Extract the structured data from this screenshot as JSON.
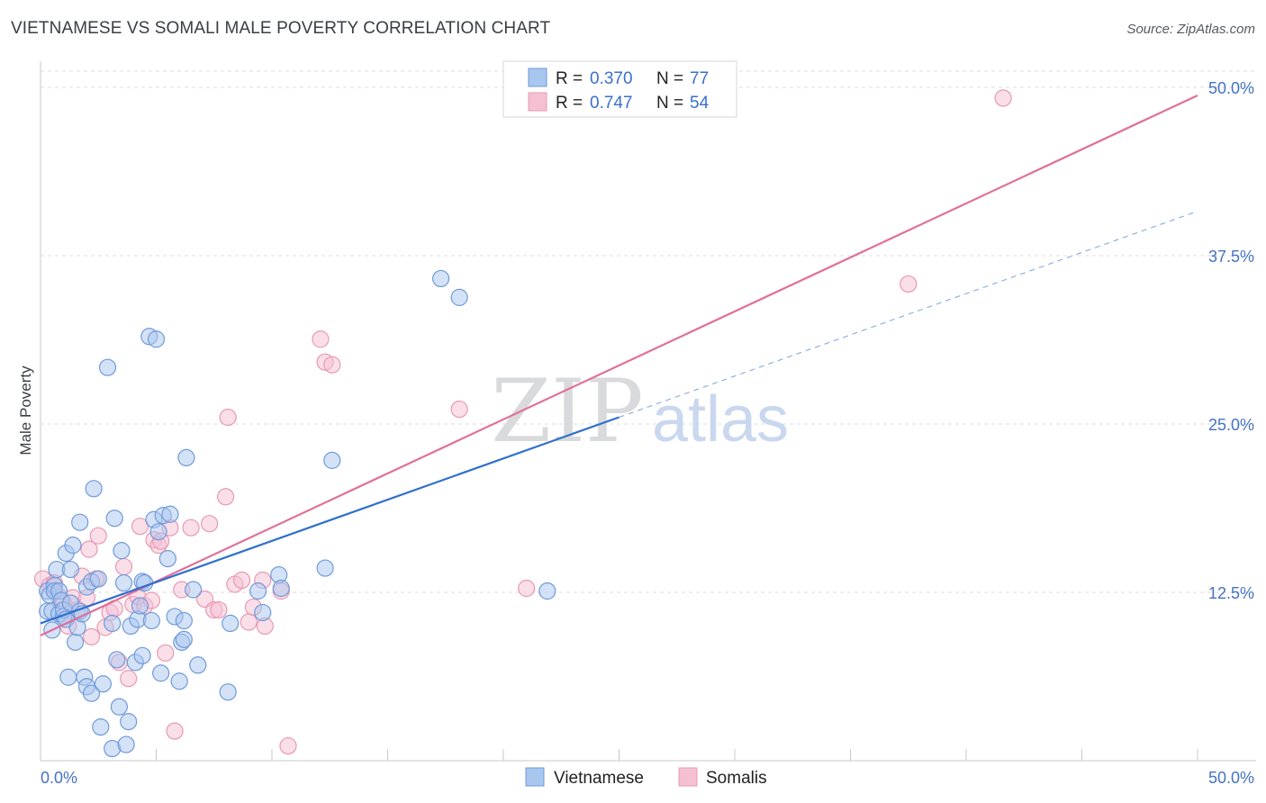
{
  "title": "VIETNAMESE VS SOMALI MALE POVERTY CORRELATION CHART",
  "source": "Source: ZipAtlas.com",
  "watermark": {
    "zip": "ZIP",
    "atlas": "atlas"
  },
  "colors": {
    "vietnamese_fill": "#a9c6ef",
    "vietnamese_stroke": "#6f9ad9",
    "vietnamese_line": "#2f6fce",
    "somali_fill": "#f6c0d3",
    "somali_stroke": "#e898b3",
    "somali_line": "#e0709a",
    "grid": "#dcdcdc",
    "axis_text": "#4472c4"
  },
  "legend": {
    "rows": [
      {
        "r_label": "R = ",
        "r_value": "0.370",
        "n_label": "N = ",
        "n_value": "77"
      },
      {
        "r_label": "R = ",
        "r_value": "0.747",
        "n_label": "N = ",
        "n_value": "54"
      }
    ]
  },
  "chart_data": {
    "type": "scatter",
    "title": "VIETNAMESE VS SOMALI MALE POVERTY CORRELATION CHART",
    "xlabel": "",
    "ylabel": "Male Poverty",
    "xlim": [
      0,
      50
    ],
    "ylim": [
      0,
      50
    ],
    "x_ticks": [
      "0.0%",
      "50.0%"
    ],
    "y_ticks": [
      {
        "value": 12.5,
        "label": "12.5%"
      },
      {
        "value": 25.0,
        "label": "25.0%"
      },
      {
        "value": 37.5,
        "label": "37.5%"
      },
      {
        "value": 50.0,
        "label": "50.0%"
      }
    ],
    "grid": true,
    "legend_position": "top-center",
    "series": [
      {
        "name": "Vietnamese",
        "r": 0.37,
        "n": 77,
        "trend": {
          "x0": 0,
          "y0": 10.2,
          "x1": 25,
          "y1": 25.5,
          "dashed_to_x": 50,
          "dashed_to_y": 40.8
        },
        "points": [
          [
            0.3,
            12.6
          ],
          [
            0.3,
            11.1
          ],
          [
            0.4,
            12.3
          ],
          [
            0.5,
            11.1
          ],
          [
            0.5,
            9.7
          ],
          [
            0.6,
            13.0
          ],
          [
            0.6,
            12.6
          ],
          [
            0.7,
            14.2
          ],
          [
            0.8,
            10.9
          ],
          [
            0.8,
            12.6
          ],
          [
            0.9,
            11.9
          ],
          [
            1.0,
            10.7
          ],
          [
            1.0,
            11.2
          ],
          [
            1.1,
            15.4
          ],
          [
            1.1,
            10.5
          ],
          [
            1.2,
            6.2
          ],
          [
            1.3,
            11.7
          ],
          [
            1.3,
            14.2
          ],
          [
            1.4,
            16.0
          ],
          [
            1.5,
            8.8
          ],
          [
            1.6,
            9.9
          ],
          [
            1.7,
            11.1
          ],
          [
            1.7,
            17.7
          ],
          [
            1.8,
            10.9
          ],
          [
            1.9,
            6.2
          ],
          [
            2.0,
            12.9
          ],
          [
            2.0,
            5.5
          ],
          [
            2.2,
            13.3
          ],
          [
            2.2,
            5.0
          ],
          [
            2.3,
            20.2
          ],
          [
            2.5,
            13.5
          ],
          [
            2.6,
            2.5
          ],
          [
            2.7,
            5.7
          ],
          [
            2.9,
            29.2
          ],
          [
            3.1,
            0.9
          ],
          [
            3.1,
            10.2
          ],
          [
            3.2,
            18.0
          ],
          [
            3.3,
            7.5
          ],
          [
            3.4,
            4.0
          ],
          [
            3.5,
            15.6
          ],
          [
            3.6,
            13.2
          ],
          [
            3.7,
            1.2
          ],
          [
            3.8,
            2.9
          ],
          [
            3.9,
            10.0
          ],
          [
            4.1,
            7.3
          ],
          [
            4.2,
            10.5
          ],
          [
            4.3,
            11.5
          ],
          [
            4.4,
            13.3
          ],
          [
            4.4,
            7.8
          ],
          [
            4.5,
            13.2
          ],
          [
            4.7,
            31.5
          ],
          [
            4.8,
            10.4
          ],
          [
            4.9,
            17.9
          ],
          [
            5.0,
            31.3
          ],
          [
            5.1,
            17.0
          ],
          [
            5.2,
            6.5
          ],
          [
            5.3,
            18.2
          ],
          [
            5.5,
            15.0
          ],
          [
            5.6,
            18.3
          ],
          [
            5.8,
            10.7
          ],
          [
            6.0,
            5.9
          ],
          [
            6.1,
            8.8
          ],
          [
            6.2,
            10.4
          ],
          [
            6.2,
            9.0
          ],
          [
            6.3,
            22.5
          ],
          [
            6.6,
            12.7
          ],
          [
            6.8,
            7.1
          ],
          [
            8.1,
            5.1
          ],
          [
            8.2,
            10.2
          ],
          [
            9.4,
            12.6
          ],
          [
            9.6,
            11.0
          ],
          [
            10.3,
            13.8
          ],
          [
            10.4,
            12.8
          ],
          [
            12.3,
            14.3
          ],
          [
            12.6,
            22.3
          ],
          [
            17.3,
            35.8
          ],
          [
            18.1,
            34.4
          ],
          [
            21.9,
            12.6
          ]
        ]
      },
      {
        "name": "Somalis",
        "r": 0.747,
        "n": 54,
        "trend": {
          "x0": 0,
          "y0": 9.3,
          "x1": 50,
          "y1": 49.4
        },
        "points": [
          [
            0.1,
            13.5
          ],
          [
            0.4,
            13.0
          ],
          [
            0.6,
            13.2
          ],
          [
            0.8,
            12.2
          ],
          [
            1.0,
            11.7
          ],
          [
            1.2,
            10.0
          ],
          [
            1.4,
            12.1
          ],
          [
            1.6,
            11.2
          ],
          [
            1.8,
            13.7
          ],
          [
            2.0,
            12.1
          ],
          [
            2.1,
            15.7
          ],
          [
            2.2,
            9.2
          ],
          [
            2.4,
            13.5
          ],
          [
            2.5,
            16.7
          ],
          [
            2.8,
            9.9
          ],
          [
            3.0,
            11.0
          ],
          [
            3.2,
            11.3
          ],
          [
            3.4,
            7.3
          ],
          [
            3.6,
            14.4
          ],
          [
            3.8,
            6.1
          ],
          [
            4.0,
            11.6
          ],
          [
            4.2,
            12.2
          ],
          [
            4.3,
            17.4
          ],
          [
            4.5,
            11.5
          ],
          [
            4.8,
            11.9
          ],
          [
            4.9,
            16.4
          ],
          [
            5.1,
            16.0
          ],
          [
            5.2,
            16.3
          ],
          [
            5.4,
            8.0
          ],
          [
            5.6,
            17.3
          ],
          [
            5.8,
            2.2
          ],
          [
            6.1,
            12.7
          ],
          [
            6.5,
            17.3
          ],
          [
            7.1,
            12.0
          ],
          [
            7.3,
            17.6
          ],
          [
            7.5,
            11.2
          ],
          [
            7.7,
            11.2
          ],
          [
            8.0,
            19.6
          ],
          [
            8.1,
            25.5
          ],
          [
            8.4,
            13.1
          ],
          [
            8.7,
            13.4
          ],
          [
            9.0,
            10.3
          ],
          [
            9.2,
            11.4
          ],
          [
            9.6,
            13.4
          ],
          [
            9.7,
            10.0
          ],
          [
            10.4,
            12.6
          ],
          [
            10.7,
            1.1
          ],
          [
            12.1,
            31.3
          ],
          [
            12.3,
            29.6
          ],
          [
            12.6,
            29.4
          ],
          [
            18.1,
            26.1
          ],
          [
            21.0,
            12.8
          ],
          [
            37.5,
            35.4
          ],
          [
            41.6,
            49.2
          ]
        ]
      }
    ]
  },
  "bottom_legend": [
    {
      "label": "Vietnamese"
    },
    {
      "label": "Somalis"
    }
  ]
}
